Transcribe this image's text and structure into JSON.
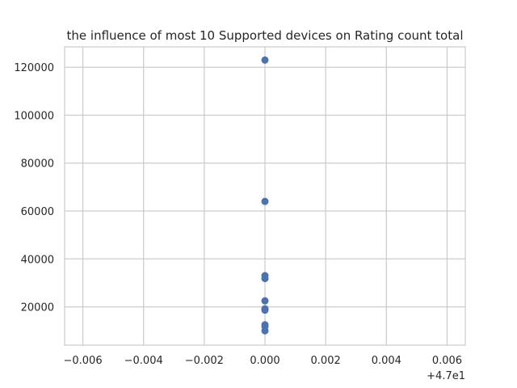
{
  "chart_data": {
    "type": "scatter",
    "title": "the influence of most 10 Supported devices on Rating count total",
    "xlabel": "",
    "ylabel": "",
    "x_offset_label": "+4.7e1",
    "x_ticks": [
      "−0.006",
      "−0.004",
      "−0.002",
      "0.000",
      "0.002",
      "0.004",
      "0.006"
    ],
    "x_tick_values": [
      -0.006,
      -0.004,
      -0.002,
      0.0,
      0.002,
      0.004,
      0.006
    ],
    "y_ticks": [
      "20000",
      "40000",
      "60000",
      "80000",
      "100000",
      "120000"
    ],
    "y_tick_values": [
      20000,
      40000,
      60000,
      80000,
      100000,
      120000
    ],
    "xlim": [
      -0.0066,
      0.0066
    ],
    "ylim": [
      4000,
      128500
    ],
    "grid": true,
    "points": [
      {
        "x": 47,
        "y": 123000
      },
      {
        "x": 47,
        "y": 64000
      },
      {
        "x": 47,
        "y": 33000
      },
      {
        "x": 47,
        "y": 31800
      },
      {
        "x": 47,
        "y": 22500
      },
      {
        "x": 47,
        "y": 19200
      },
      {
        "x": 47,
        "y": 18600
      },
      {
        "x": 47,
        "y": 12500
      },
      {
        "x": 47,
        "y": 11800
      },
      {
        "x": 47,
        "y": 10000
      }
    ]
  }
}
